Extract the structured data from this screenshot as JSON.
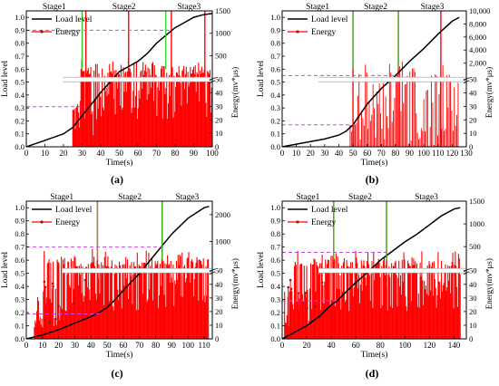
{
  "chart_data": [
    {
      "panel_label": "(a)",
      "type": "line",
      "x_label": "Time(s)",
      "y_left_label": "Load level",
      "y_right_label": "Energy(mv*μs)",
      "x_ticks": [
        "0",
        "10",
        "20",
        "30",
        "40",
        "50",
        "60",
        "70",
        "80",
        "90",
        "100"
      ],
      "y_left_ticks": [
        "0.0",
        "0.1",
        "0.2",
        "0.3",
        "0.4",
        "0.5",
        "0.6",
        "0.7",
        "0.8",
        "0.9",
        "1.0"
      ],
      "y_right_ticks_lower": [
        "0",
        "10",
        "20",
        "30",
        "40",
        "50"
      ],
      "y_right_ticks_upper": [
        "500",
        "1000",
        "1500"
      ],
      "stage_labels": [
        "Stage1",
        "Stage2",
        "Stage3"
      ],
      "legend": {
        "load": "Load level",
        "energy": "Energy"
      },
      "colors": {
        "load": "#000000",
        "energy": "#ff0000",
        "dashed_level": "#cc44ee",
        "stage_divider": "#22cc22"
      },
      "xlim": [
        0,
        100
      ],
      "ylim_left": [
        0,
        1.05
      ],
      "axis_break_energy": 50,
      "energy_lower_range": [
        0,
        50
      ],
      "energy_upper_range": [
        50,
        1500
      ],
      "stage_boundaries_s": [
        30,
        75
      ],
      "dashed_levels": [
        0.31,
        0.9
      ],
      "load_level": {
        "x": [
          0,
          10,
          20,
          25,
          30,
          35,
          40,
          45,
          50,
          55,
          60,
          65,
          70,
          75,
          80,
          85,
          90,
          95,
          100
        ],
        "y": [
          0.0,
          0.05,
          0.1,
          0.15,
          0.24,
          0.33,
          0.42,
          0.5,
          0.58,
          0.62,
          0.66,
          0.72,
          0.8,
          0.86,
          0.92,
          0.96,
          1.0,
          1.02,
          1.03
        ]
      },
      "energy": {
        "onset_s": 25,
        "end_s": 100,
        "tall_spikes_s": [
          32,
          55,
          78,
          96
        ],
        "density": "dense"
      }
    },
    {
      "panel_label": "(b)",
      "type": "line",
      "x_label": "Time(s)",
      "y_left_label": "Load level",
      "y_right_label": "Energy(mv*μs)",
      "x_ticks": [
        "0",
        "10",
        "20",
        "30",
        "40",
        "50",
        "60",
        "70",
        "80",
        "90",
        "100",
        "110",
        "120",
        "130"
      ],
      "y_left_ticks": [
        "0.0",
        "0.1",
        "0.2",
        "0.3",
        "0.4",
        "0.5",
        "0.6",
        "0.7",
        "0.8",
        "0.9",
        "1.0"
      ],
      "y_right_ticks_lower": [
        "0",
        "10",
        "20",
        "30",
        "40",
        "50"
      ],
      "y_right_ticks_upper": [
        "2,000",
        "4,000",
        "6,000",
        "8,000",
        "10,000"
      ],
      "stage_labels": [
        "Stage1",
        "Stage2",
        "Stage3"
      ],
      "legend": {
        "load": "Load level",
        "energy": "Energy"
      },
      "colors": {
        "load": "#000000",
        "energy": "#ff0000",
        "dashed_level": "#cc44ee",
        "stage_divider": "#22cc22"
      },
      "xlim": [
        0,
        130
      ],
      "ylim_left": [
        0,
        1.05
      ],
      "axis_break_energy": 50,
      "energy_lower_range": [
        0,
        50
      ],
      "energy_upper_range": [
        50,
        10000
      ],
      "stage_boundaries_s": [
        50,
        82
      ],
      "dashed_levels": [
        0.17,
        0.55
      ],
      "load_level": {
        "x": [
          0,
          10,
          20,
          30,
          40,
          45,
          50,
          55,
          60,
          70,
          80,
          90,
          100,
          110,
          120,
          125
        ],
        "y": [
          0.0,
          0.02,
          0.04,
          0.06,
          0.09,
          0.12,
          0.17,
          0.25,
          0.33,
          0.45,
          0.55,
          0.66,
          0.76,
          0.87,
          0.97,
          1.0
        ]
      },
      "energy": {
        "onset_s": 48,
        "end_s": 125,
        "tall_spikes_s": [
          50,
          82,
          112
        ],
        "density": "moderate"
      }
    },
    {
      "panel_label": "(c)",
      "type": "line",
      "x_label": "Time(s)",
      "y_left_label": "Load level",
      "y_right_label": "Energy(mv*μs)",
      "x_ticks": [
        "0",
        "10",
        "20",
        "30",
        "40",
        "50",
        "60",
        "70",
        "80",
        "90",
        "100",
        "110"
      ],
      "y_left_ticks": [
        "0.0",
        "0.1",
        "0.2",
        "0.3",
        "0.4",
        "0.5",
        "0.6",
        "0.7",
        "0.8",
        "0.9",
        "1.0"
      ],
      "y_right_ticks_lower": [
        "0",
        "10",
        "20",
        "30",
        "40",
        "50"
      ],
      "y_right_ticks_upper": [
        "1000",
        "2000"
      ],
      "stage_labels": [
        "Stage1",
        "Stage2",
        "Stage3"
      ],
      "legend": {
        "load": "Load level",
        "energy": "Energy"
      },
      "colors": {
        "load": "#000000",
        "energy": "#ff0000",
        "dashed_level": "#cc44ee",
        "stage_divider": "#22cc22"
      },
      "xlim": [
        0,
        115
      ],
      "ylim_left": [
        0,
        1.05
      ],
      "axis_break_energy": 50,
      "energy_lower_range": [
        0,
        50
      ],
      "energy_upper_range": [
        50,
        2500
      ],
      "stage_boundaries_s": [
        44,
        84
      ],
      "dashed_levels": [
        0.19,
        0.7
      ],
      "load_level": {
        "x": [
          0,
          10,
          20,
          30,
          40,
          45,
          50,
          55,
          60,
          70,
          80,
          90,
          100,
          110,
          113
        ],
        "y": [
          0.0,
          0.03,
          0.07,
          0.12,
          0.17,
          0.2,
          0.24,
          0.3,
          0.37,
          0.5,
          0.65,
          0.8,
          0.92,
          1.0,
          1.01
        ]
      },
      "energy": {
        "onset_s": 5,
        "end_s": 113,
        "tall_spikes_s": [
          44,
          84
        ],
        "density": "dense"
      }
    },
    {
      "panel_label": "(d)",
      "type": "line",
      "x_label": "Time(s)",
      "y_left_label": "Load level",
      "y_right_label": "Energy(mv*μs)",
      "x_ticks": [
        "0",
        "20",
        "40",
        "60",
        "80",
        "100",
        "120",
        "140"
      ],
      "y_left_ticks": [
        "0.0",
        "0.1",
        "0.2",
        "0.3",
        "0.4",
        "0.5",
        "0.6",
        "0.7",
        "0.8",
        "0.9",
        "1.0"
      ],
      "y_right_ticks_lower": [
        "0",
        "10",
        "20",
        "30",
        "40",
        "50"
      ],
      "y_right_ticks_upper": [
        "500",
        "1000",
        "1500"
      ],
      "stage_labels": [
        "Stage1",
        "Stage2",
        "Stage3"
      ],
      "legend": {
        "load": "Load level",
        "energy": "Energy"
      },
      "colors": {
        "load": "#000000",
        "energy": "#ff0000",
        "dashed_level": "#cc44ee",
        "stage_divider": "#22cc22"
      },
      "xlim": [
        0,
        150
      ],
      "ylim_left": [
        0,
        1.05
      ],
      "axis_break_energy": 50,
      "energy_lower_range": [
        0,
        50
      ],
      "energy_upper_range": [
        50,
        1500
      ],
      "stage_boundaries_s": [
        42,
        85
      ],
      "dashed_levels": [
        0.29,
        0.66
      ],
      "load_level": {
        "x": [
          0,
          10,
          20,
          30,
          40,
          45,
          50,
          60,
          70,
          80,
          90,
          100,
          110,
          120,
          130,
          140,
          145
        ],
        "y": [
          0.0,
          0.05,
          0.1,
          0.17,
          0.26,
          0.29,
          0.34,
          0.43,
          0.51,
          0.6,
          0.67,
          0.74,
          0.8,
          0.87,
          0.94,
          0.99,
          1.0
        ]
      },
      "energy": {
        "onset_s": 2,
        "end_s": 145,
        "tall_spikes_s": [
          42,
          85
        ],
        "density": "dense"
      }
    }
  ]
}
